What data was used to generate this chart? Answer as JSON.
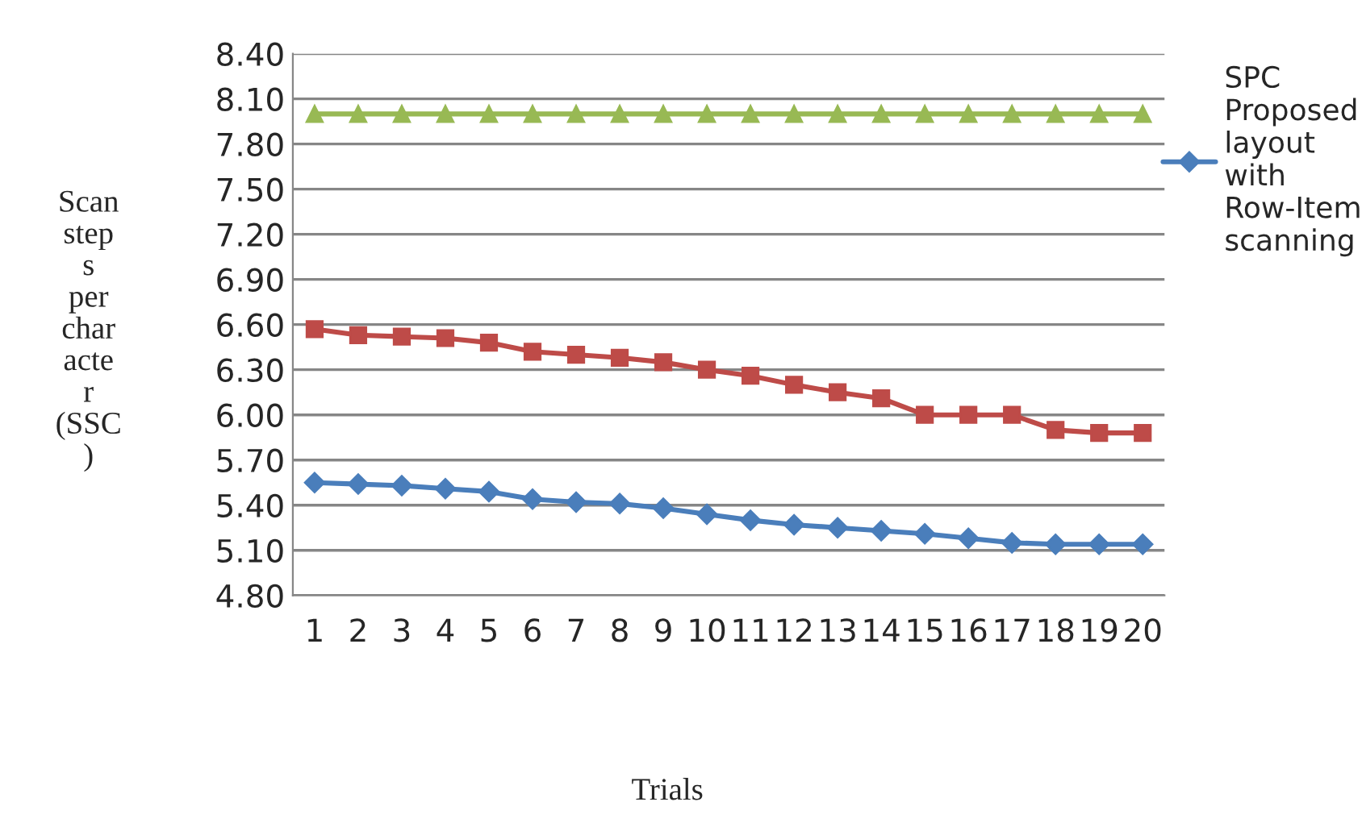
{
  "chart_data": {
    "type": "line",
    "xlabel": "Trials",
    "ylabel": "Scan steps per character (SSC)",
    "categories": [
      "1",
      "2",
      "3",
      "4",
      "5",
      "6",
      "7",
      "8",
      "9",
      "10",
      "11",
      "12",
      "13",
      "14",
      "15",
      "16",
      "17",
      "18",
      "19",
      "20"
    ],
    "series": [
      {
        "name": "SPC Proposed layout with Row-Item scanning",
        "color": "#4a7ebb",
        "marker": "diamond",
        "values": [
          5.55,
          5.54,
          5.53,
          5.51,
          5.49,
          5.44,
          5.42,
          5.41,
          5.38,
          5.34,
          5.3,
          5.27,
          5.25,
          5.23,
          5.21,
          5.18,
          5.15,
          5.14,
          5.14,
          5.14
        ]
      },
      {
        "color": "#be4b48",
        "marker": "square",
        "values": [
          6.57,
          6.53,
          6.52,
          6.51,
          6.48,
          6.42,
          6.4,
          6.38,
          6.35,
          6.3,
          6.26,
          6.2,
          6.15,
          6.11,
          6.0,
          6.0,
          6.0,
          5.9,
          5.88,
          5.88
        ]
      },
      {
        "color": "#98b954",
        "marker": "triangle",
        "values": [
          8.0,
          8.0,
          8.0,
          8.0,
          8.0,
          8.0,
          8.0,
          8.0,
          8.0,
          8.0,
          8.0,
          8.0,
          8.0,
          8.0,
          8.0,
          8.0,
          8.0,
          8.0,
          8.0,
          8.0
        ]
      }
    ],
    "ylim": [
      4.8,
      8.4
    ],
    "yticks": [
      {
        "value": 4.8,
        "label": "4.80"
      },
      {
        "value": 5.1,
        "label": "5.10"
      },
      {
        "value": 5.4,
        "label": "5.40"
      },
      {
        "value": 5.7,
        "label": "5.70"
      },
      {
        "value": 6.0,
        "label": "6.00"
      },
      {
        "value": 6.3,
        "label": "6.30"
      },
      {
        "value": 6.6,
        "label": "6.60"
      },
      {
        "value": 6.9,
        "label": "6.90"
      },
      {
        "value": 7.2,
        "label": "7.20"
      },
      {
        "value": 7.5,
        "label": "7.50"
      },
      {
        "value": 7.8,
        "label": "7.80"
      },
      {
        "value": 8.1,
        "label": "8.10"
      },
      {
        "value": 8.4,
        "label": "8.40"
      }
    ],
    "grid": "y",
    "legend": "right",
    "line_style": "solid"
  }
}
